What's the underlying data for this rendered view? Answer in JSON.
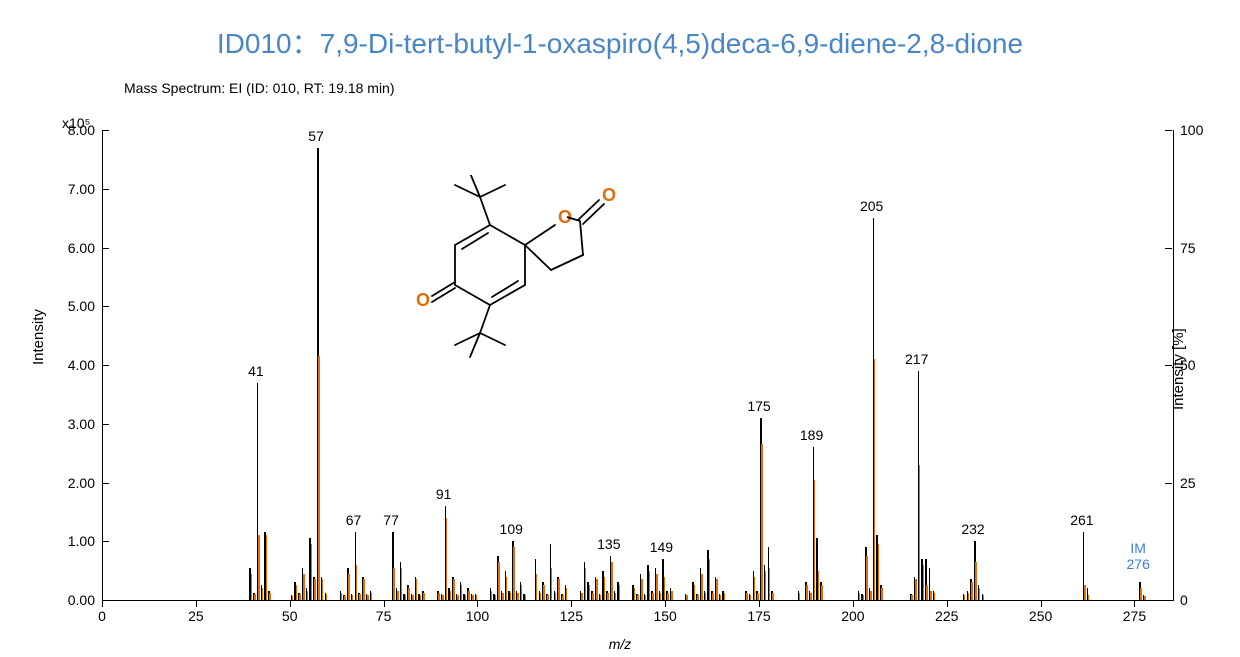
{
  "title": {
    "text": "ID010：7,9-Di-tert-butyl-1-oxaspiro(4,5)deca-6,9-diene-2,8-dione",
    "color": "#4a86c7",
    "fontsize": 28
  },
  "subtitle": "Mass Spectrum: EI (ID: 010, RT: 19.18 min)",
  "y_exponent": "x10⁵",
  "ylabel_left": "Intensity",
  "ylabel_right": "Intensity [%]",
  "xlabel": "m/z",
  "axes": {
    "xlim": [
      0,
      285
    ],
    "xtick_step": 25,
    "ylim_left": [
      0,
      8.0
    ],
    "ytick_left_step": 1.0,
    "ylim_right": [
      0,
      100
    ],
    "ytick_right_step": 25
  },
  "colors": {
    "bar_black": "#000000",
    "bar_orange": "#e36c0a",
    "title": "#4a86c7",
    "im_label": "#3b7dd8",
    "axis": "#000000",
    "background": "#ffffff"
  },
  "peak_labels": [
    {
      "mz": 41,
      "text": "41",
      "y": 3.7
    },
    {
      "mz": 57,
      "text": "57",
      "y": 7.7
    },
    {
      "mz": 67,
      "text": "67",
      "y": 1.15
    },
    {
      "mz": 77,
      "text": "77",
      "y": 1.15
    },
    {
      "mz": 91,
      "text": "91",
      "y": 1.6
    },
    {
      "mz": 109,
      "text": "109",
      "y": 1.0
    },
    {
      "mz": 135,
      "text": "135",
      "y": 0.75
    },
    {
      "mz": 149,
      "text": "149",
      "y": 0.7
    },
    {
      "mz": 175,
      "text": "175",
      "y": 3.1
    },
    {
      "mz": 189,
      "text": "189",
      "y": 2.6
    },
    {
      "mz": 205,
      "text": "205",
      "y": 6.5
    },
    {
      "mz": 217,
      "text": "217",
      "y": 3.9
    },
    {
      "mz": 232,
      "text": "232",
      "y": 1.0
    },
    {
      "mz": 261,
      "text": "261",
      "y": 1.15
    }
  ],
  "im_label": {
    "mz": 276,
    "text_top": "IM",
    "text_bot": "276",
    "y": 0.3
  },
  "peaks": [
    {
      "mz": 39,
      "k": 0.55,
      "o": 0.45
    },
    {
      "mz": 40,
      "k": 0.12,
      "o": 0.1
    },
    {
      "mz": 41,
      "k": 3.7,
      "o": 1.1
    },
    {
      "mz": 42,
      "k": 0.25,
      "o": 0.2
    },
    {
      "mz": 43,
      "k": 1.15,
      "o": 1.1
    },
    {
      "mz": 44,
      "k": 0.15,
      "o": 0.12
    },
    {
      "mz": 50,
      "k": 0.08,
      "o": 0.06
    },
    {
      "mz": 51,
      "k": 0.3,
      "o": 0.25
    },
    {
      "mz": 52,
      "k": 0.12,
      "o": 0.1
    },
    {
      "mz": 53,
      "k": 0.55,
      "o": 0.45
    },
    {
      "mz": 54,
      "k": 0.2,
      "o": 0.15
    },
    {
      "mz": 55,
      "k": 1.05,
      "o": 0.95
    },
    {
      "mz": 56,
      "k": 0.4,
      "o": 0.35
    },
    {
      "mz": 57,
      "k": 7.7,
      "o": 4.15
    },
    {
      "mz": 58,
      "k": 0.4,
      "o": 0.35
    },
    {
      "mz": 59,
      "k": 0.12,
      "o": 0.1
    },
    {
      "mz": 63,
      "k": 0.15,
      "o": 0.12
    },
    {
      "mz": 64,
      "k": 0.08,
      "o": 0.06
    },
    {
      "mz": 65,
      "k": 0.55,
      "o": 0.45
    },
    {
      "mz": 66,
      "k": 0.1,
      "o": 0.08
    },
    {
      "mz": 67,
      "k": 1.15,
      "o": 0.6
    },
    {
      "mz": 68,
      "k": 0.12,
      "o": 0.1
    },
    {
      "mz": 69,
      "k": 0.4,
      "o": 0.35
    },
    {
      "mz": 70,
      "k": 0.1,
      "o": 0.08
    },
    {
      "mz": 71,
      "k": 0.15,
      "o": 0.12
    },
    {
      "mz": 77,
      "k": 1.15,
      "o": 0.55
    },
    {
      "mz": 78,
      "k": 0.2,
      "o": 0.15
    },
    {
      "mz": 79,
      "k": 0.65,
      "o": 0.55
    },
    {
      "mz": 80,
      "k": 0.1,
      "o": 0.08
    },
    {
      "mz": 81,
      "k": 0.25,
      "o": 0.2
    },
    {
      "mz": 82,
      "k": 0.1,
      "o": 0.08
    },
    {
      "mz": 83,
      "k": 0.4,
      "o": 0.35
    },
    {
      "mz": 84,
      "k": 0.1,
      "o": 0.08
    },
    {
      "mz": 85,
      "k": 0.15,
      "o": 0.12
    },
    {
      "mz": 89,
      "k": 0.15,
      "o": 0.12
    },
    {
      "mz": 90,
      "k": 0.1,
      "o": 0.08
    },
    {
      "mz": 91,
      "k": 1.6,
      "o": 1.4
    },
    {
      "mz": 92,
      "k": 0.2,
      "o": 0.15
    },
    {
      "mz": 93,
      "k": 0.4,
      "o": 0.35
    },
    {
      "mz": 94,
      "k": 0.1,
      "o": 0.08
    },
    {
      "mz": 95,
      "k": 0.3,
      "o": 0.25
    },
    {
      "mz": 96,
      "k": 0.1,
      "o": 0.08
    },
    {
      "mz": 97,
      "k": 0.2,
      "o": 0.15
    },
    {
      "mz": 98,
      "k": 0.1,
      "o": 0.08
    },
    {
      "mz": 99,
      "k": 0.1,
      "o": 0.08
    },
    {
      "mz": 103,
      "k": 0.2,
      "o": 0.15
    },
    {
      "mz": 104,
      "k": 0.1,
      "o": 0.08
    },
    {
      "mz": 105,
      "k": 0.75,
      "o": 0.65
    },
    {
      "mz": 106,
      "k": 0.15,
      "o": 0.12
    },
    {
      "mz": 107,
      "k": 0.5,
      "o": 0.4
    },
    {
      "mz": 108,
      "k": 0.15,
      "o": 0.12
    },
    {
      "mz": 109,
      "k": 1.0,
      "o": 0.9
    },
    {
      "mz": 110,
      "k": 0.15,
      "o": 0.12
    },
    {
      "mz": 111,
      "k": 0.3,
      "o": 0.25
    },
    {
      "mz": 112,
      "k": 0.1,
      "o": 0.08
    },
    {
      "mz": 115,
      "k": 0.7,
      "o": 0.45
    },
    {
      "mz": 116,
      "k": 0.15,
      "o": 0.12
    },
    {
      "mz": 117,
      "k": 0.3,
      "o": 0.25
    },
    {
      "mz": 118,
      "k": 0.1,
      "o": 0.08
    },
    {
      "mz": 119,
      "k": 0.95,
      "o": 0.55
    },
    {
      "mz": 120,
      "k": 0.15,
      "o": 0.12
    },
    {
      "mz": 121,
      "k": 0.4,
      "o": 0.35
    },
    {
      "mz": 122,
      "k": 0.1,
      "o": 0.08
    },
    {
      "mz": 123,
      "k": 0.25,
      "o": 0.2
    },
    {
      "mz": 127,
      "k": 0.15,
      "o": 0.12
    },
    {
      "mz": 128,
      "k": 0.65,
      "o": 0.55
    },
    {
      "mz": 129,
      "k": 0.3,
      "o": 0.25
    },
    {
      "mz": 130,
      "k": 0.15,
      "o": 0.12
    },
    {
      "mz": 131,
      "k": 0.4,
      "o": 0.35
    },
    {
      "mz": 132,
      "k": 0.1,
      "o": 0.08
    },
    {
      "mz": 133,
      "k": 0.5,
      "o": 0.4
    },
    {
      "mz": 134,
      "k": 0.15,
      "o": 0.12
    },
    {
      "mz": 135,
      "k": 0.75,
      "o": 0.65
    },
    {
      "mz": 136,
      "k": 0.15,
      "o": 0.12
    },
    {
      "mz": 137,
      "k": 0.3,
      "o": 0.25
    },
    {
      "mz": 141,
      "k": 0.25,
      "o": 0.2
    },
    {
      "mz": 142,
      "k": 0.1,
      "o": 0.08
    },
    {
      "mz": 143,
      "k": 0.45,
      "o": 0.35
    },
    {
      "mz": 144,
      "k": 0.1,
      "o": 0.08
    },
    {
      "mz": 145,
      "k": 0.6,
      "o": 0.5
    },
    {
      "mz": 146,
      "k": 0.15,
      "o": 0.12
    },
    {
      "mz": 147,
      "k": 0.55,
      "o": 0.45
    },
    {
      "mz": 148,
      "k": 0.15,
      "o": 0.12
    },
    {
      "mz": 149,
      "k": 0.7,
      "o": 0.4
    },
    {
      "mz": 150,
      "k": 0.15,
      "o": 0.12
    },
    {
      "mz": 151,
      "k": 0.2,
      "o": 0.15
    },
    {
      "mz": 155,
      "k": 0.1,
      "o": 0.08
    },
    {
      "mz": 157,
      "k": 0.3,
      "o": 0.25
    },
    {
      "mz": 158,
      "k": 0.1,
      "o": 0.08
    },
    {
      "mz": 159,
      "k": 0.55,
      "o": 0.45
    },
    {
      "mz": 160,
      "k": 0.15,
      "o": 0.12
    },
    {
      "mz": 161,
      "k": 0.85,
      "o": 0.7
    },
    {
      "mz": 162,
      "k": 0.15,
      "o": 0.12
    },
    {
      "mz": 163,
      "k": 0.4,
      "o": 0.35
    },
    {
      "mz": 164,
      "k": 0.1,
      "o": 0.08
    },
    {
      "mz": 165,
      "k": 0.15,
      "o": 0.12
    },
    {
      "mz": 171,
      "k": 0.15,
      "o": 0.12
    },
    {
      "mz": 172,
      "k": 0.1,
      "o": 0.08
    },
    {
      "mz": 173,
      "k": 0.5,
      "o": 0.4
    },
    {
      "mz": 174,
      "k": 0.15,
      "o": 0.12
    },
    {
      "mz": 175,
      "k": 3.1,
      "o": 2.65
    },
    {
      "mz": 176,
      "k": 0.6,
      "o": 0.5
    },
    {
      "mz": 177,
      "k": 0.9,
      "o": 0.55
    },
    {
      "mz": 178,
      "k": 0.15,
      "o": 0.12
    },
    {
      "mz": 185,
      "k": 0.15,
      "o": 0.12
    },
    {
      "mz": 187,
      "k": 0.3,
      "o": 0.25
    },
    {
      "mz": 188,
      "k": 0.15,
      "o": 0.12
    },
    {
      "mz": 189,
      "k": 2.6,
      "o": 2.05
    },
    {
      "mz": 190,
      "k": 1.05,
      "o": 0.5
    },
    {
      "mz": 191,
      "k": 0.3,
      "o": 0.25
    },
    {
      "mz": 201,
      "k": 0.15,
      "o": 0.12
    },
    {
      "mz": 202,
      "k": 0.1,
      "o": 0.08
    },
    {
      "mz": 203,
      "k": 0.9,
      "o": 0.75
    },
    {
      "mz": 204,
      "k": 0.2,
      "o": 0.15
    },
    {
      "mz": 205,
      "k": 6.5,
      "o": 4.1
    },
    {
      "mz": 206,
      "k": 1.1,
      "o": 0.95
    },
    {
      "mz": 207,
      "k": 0.25,
      "o": 0.2
    },
    {
      "mz": 215,
      "k": 0.1,
      "o": 0.08
    },
    {
      "mz": 216,
      "k": 0.4,
      "o": 0.35
    },
    {
      "mz": 217,
      "k": 3.9,
      "o": 2.3
    },
    {
      "mz": 218,
      "k": 0.7,
      "o": 0.6
    },
    {
      "mz": 219,
      "k": 0.7,
      "o": 0.25
    },
    {
      "mz": 220,
      "k": 0.55,
      "o": 0.15
    },
    {
      "mz": 221,
      "k": 0.15,
      "o": 0.12
    },
    {
      "mz": 229,
      "k": 0.1,
      "o": 0.08
    },
    {
      "mz": 230,
      "k": 0.15,
      "o": 0.12
    },
    {
      "mz": 231,
      "k": 0.35,
      "o": 0.3
    },
    {
      "mz": 232,
      "k": 1.0,
      "o": 0.65
    },
    {
      "mz": 233,
      "k": 0.25,
      "o": 0.2
    },
    {
      "mz": 234,
      "k": 0.1,
      "o": 0.08
    },
    {
      "mz": 261,
      "k": 1.15,
      "o": 0.25
    },
    {
      "mz": 262,
      "k": 0.2,
      "o": 0.08
    },
    {
      "mz": 276,
      "k": 0.3,
      "o": 0.2
    },
    {
      "mz": 277,
      "k": 0.08,
      "o": 0.06
    }
  ],
  "molecule": {
    "stroke": "#000000",
    "oxygen_color": "#e36c0a",
    "stroke_width": 1.8
  }
}
